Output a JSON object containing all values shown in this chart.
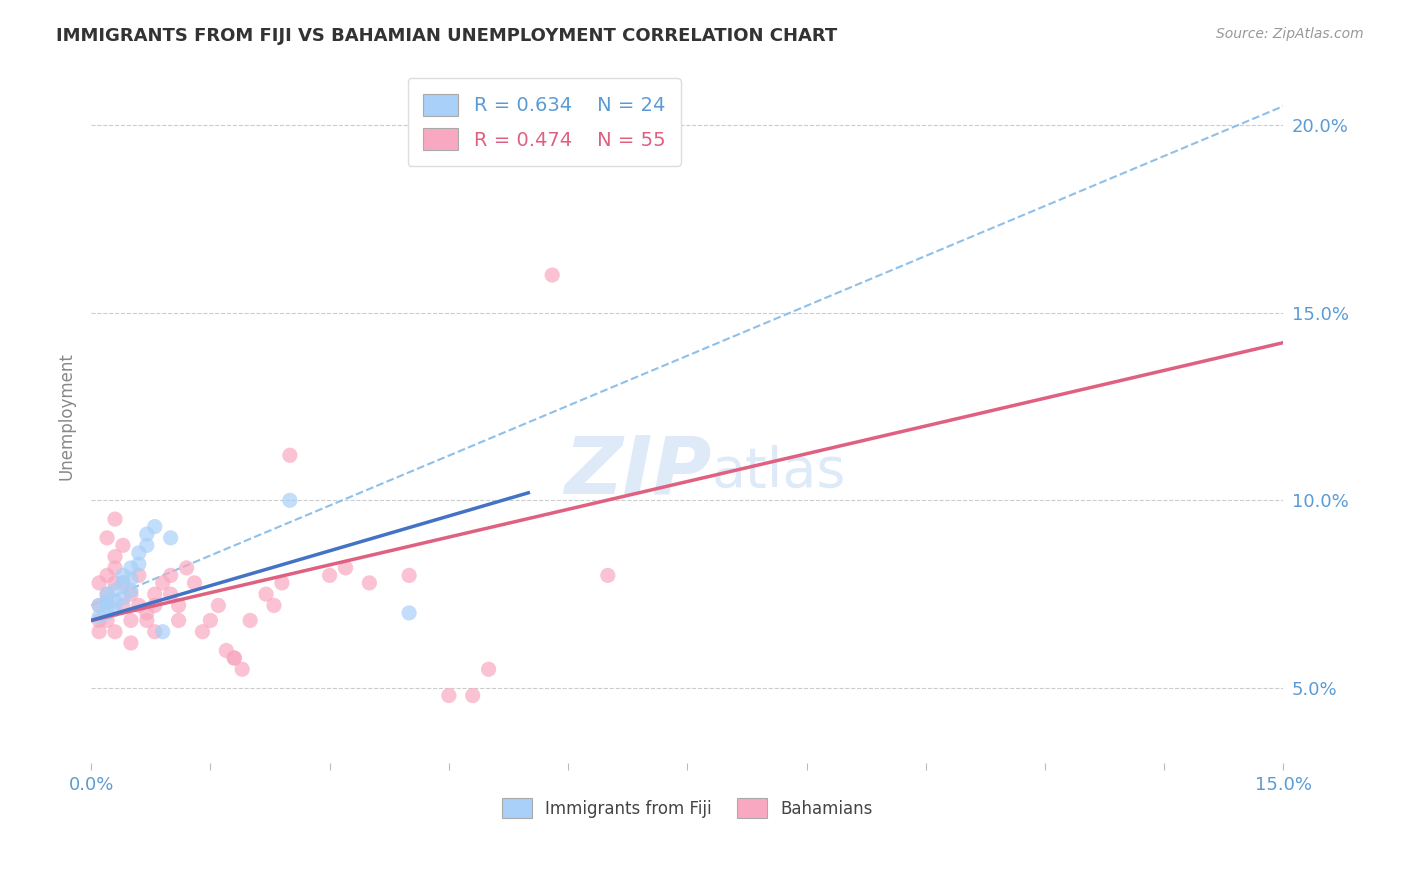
{
  "title": "IMMIGRANTS FROM FIJI VS BAHAMIAN UNEMPLOYMENT CORRELATION CHART",
  "source_text": "Source: ZipAtlas.com",
  "ylabel": "Unemployment",
  "xlim": [
    0.0,
    0.15
  ],
  "ylim": [
    0.03,
    0.215
  ],
  "y_ticks": [
    0.05,
    0.1,
    0.15,
    0.2
  ],
  "y_tick_labels": [
    "5.0%",
    "10.0%",
    "15.0%",
    "20.0%"
  ],
  "legend_r1": "R = 0.634",
  "legend_n1": "N = 24",
  "legend_r2": "R = 0.474",
  "legend_n2": "N = 55",
  "blue_color": "#A8D0F8",
  "pink_color": "#F8A8C0",
  "trend_blue": "#4472C4",
  "trend_pink": "#E06080",
  "trend_dashed_color": "#90C0E8",
  "watermark_color": "#C8DCF4",
  "fiji_points": [
    [
      0.001,
      0.072
    ],
    [
      0.001,
      0.069
    ],
    [
      0.002,
      0.072
    ],
    [
      0.002,
      0.07
    ],
    [
      0.002,
      0.075
    ],
    [
      0.003,
      0.073
    ],
    [
      0.003,
      0.076
    ],
    [
      0.003,
      0.071
    ],
    [
      0.004,
      0.074
    ],
    [
      0.004,
      0.08
    ],
    [
      0.004,
      0.078
    ],
    [
      0.005,
      0.082
    ],
    [
      0.005,
      0.079
    ],
    [
      0.005,
      0.076
    ],
    [
      0.006,
      0.083
    ],
    [
      0.006,
      0.086
    ],
    [
      0.007,
      0.088
    ],
    [
      0.007,
      0.091
    ],
    [
      0.008,
      0.093
    ],
    [
      0.009,
      0.065
    ],
    [
      0.01,
      0.09
    ],
    [
      0.025,
      0.1
    ],
    [
      0.04,
      0.07
    ],
    [
      0.002,
      0.073
    ]
  ],
  "bahamian_points": [
    [
      0.001,
      0.072
    ],
    [
      0.001,
      0.078
    ],
    [
      0.001,
      0.068
    ],
    [
      0.001,
      0.065
    ],
    [
      0.002,
      0.08
    ],
    [
      0.002,
      0.075
    ],
    [
      0.002,
      0.09
    ],
    [
      0.002,
      0.068
    ],
    [
      0.002,
      0.073
    ],
    [
      0.003,
      0.082
    ],
    [
      0.003,
      0.078
    ],
    [
      0.003,
      0.085
    ],
    [
      0.003,
      0.065
    ],
    [
      0.003,
      0.095
    ],
    [
      0.004,
      0.088
    ],
    [
      0.004,
      0.072
    ],
    [
      0.004,
      0.078
    ],
    [
      0.005,
      0.075
    ],
    [
      0.005,
      0.068
    ],
    [
      0.005,
      0.062
    ],
    [
      0.006,
      0.072
    ],
    [
      0.006,
      0.08
    ],
    [
      0.007,
      0.07
    ],
    [
      0.007,
      0.068
    ],
    [
      0.008,
      0.075
    ],
    [
      0.008,
      0.072
    ],
    [
      0.008,
      0.065
    ],
    [
      0.009,
      0.078
    ],
    [
      0.01,
      0.075
    ],
    [
      0.01,
      0.08
    ],
    [
      0.011,
      0.072
    ],
    [
      0.011,
      0.068
    ],
    [
      0.012,
      0.082
    ],
    [
      0.013,
      0.078
    ],
    [
      0.014,
      0.065
    ],
    [
      0.015,
      0.068
    ],
    [
      0.016,
      0.072
    ],
    [
      0.017,
      0.06
    ],
    [
      0.018,
      0.058
    ],
    [
      0.018,
      0.058
    ],
    [
      0.019,
      0.055
    ],
    [
      0.02,
      0.068
    ],
    [
      0.022,
      0.075
    ],
    [
      0.023,
      0.072
    ],
    [
      0.024,
      0.078
    ],
    [
      0.025,
      0.112
    ],
    [
      0.03,
      0.08
    ],
    [
      0.032,
      0.082
    ],
    [
      0.035,
      0.078
    ],
    [
      0.04,
      0.08
    ],
    [
      0.045,
      0.048
    ],
    [
      0.048,
      0.048
    ],
    [
      0.05,
      0.055
    ],
    [
      0.058,
      0.16
    ],
    [
      0.065,
      0.08
    ]
  ],
  "blue_trend_x": [
    0.0,
    0.055
  ],
  "blue_trend_y": [
    0.068,
    0.102
  ],
  "pink_trend_x": [
    0.0,
    0.15
  ],
  "pink_trend_y": [
    0.068,
    0.142
  ],
  "dashed_trend_x": [
    0.0,
    0.15
  ],
  "dashed_trend_y": [
    0.072,
    0.205
  ]
}
